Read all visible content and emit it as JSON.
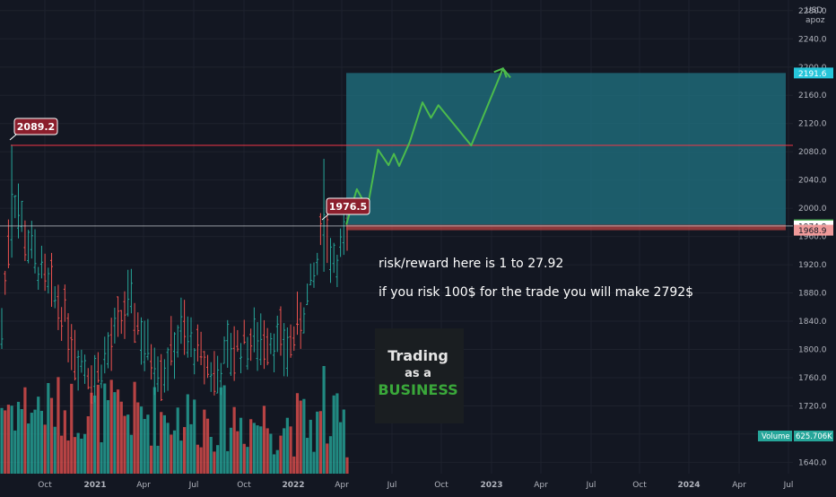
{
  "chart_data": {
    "type": "ohlc-bar",
    "x_axis": {
      "tick_labels": [
        "Oct",
        "2021",
        "Apr",
        "Jul",
        "Oct",
        "2022",
        "Apr",
        "Jul",
        "Oct",
        "2023",
        "Apr",
        "Jul",
        "Oct",
        "2024",
        "Apr",
        "Jul"
      ],
      "range": [
        "2020-07",
        "2024-07"
      ]
    },
    "y_axis": {
      "currency": "USD",
      "sub_label": "apoz",
      "ticks": [
        2280.0,
        2240.0,
        2200.0,
        2160.0,
        2120.0,
        2080.0,
        2040.0,
        2000.0,
        1960.0,
        1920.0,
        1880.0,
        1840.0,
        1800.0,
        1760.0,
        1720.0,
        1680.0,
        1640.0
      ],
      "tick_labels": [
        "2280.0",
        "2240.0",
        "2200.0",
        "2160.0",
        "2120.0",
        "2080.0",
        "2040.0",
        "2000.0",
        "1960.0",
        "1920.0",
        "1880.0",
        "1840.0",
        "1800.0",
        "1760.0",
        "1720.0",
        "1680.0",
        "1640.0"
      ],
      "range": [
        1624,
        2295
      ]
    },
    "price_badges": [
      {
        "value": "2191.6",
        "color": "#26c6da"
      },
      {
        "value": "1976.6",
        "color": "#4caf50"
      },
      {
        "value": "1974.9",
        "color": "#ffffff"
      },
      {
        "value": "1968.9",
        "color": "#ef9a9a"
      }
    ],
    "volume_badge": {
      "label": "Volume",
      "value": "625.706K",
      "color": "#26a69a"
    },
    "callouts": [
      {
        "text": "2089.2",
        "price": 2089.2
      },
      {
        "text": "1976.5",
        "price": 1976.5
      }
    ],
    "horizontal_lines": [
      {
        "price": 2089.2,
        "color": "#f23645"
      },
      {
        "price": 1974.9,
        "color": "#ffffff"
      }
    ],
    "trade_box": {
      "target": 2191.6,
      "entry": 1976.6,
      "stop": 1968.9,
      "ratio": 27.92
    },
    "projection_path": [
      [
        1976.6,
        0.0
      ],
      [
        2027.0,
        0.1
      ],
      [
        2000.0,
        0.2
      ],
      [
        2083.0,
        0.3
      ],
      [
        2061.0,
        0.4
      ],
      [
        2077.0,
        0.45
      ],
      [
        2060.0,
        0.5
      ],
      [
        2094.0,
        0.6
      ],
      [
        2150.0,
        0.72
      ],
      [
        2128.0,
        0.8
      ],
      [
        2146.0,
        0.87
      ],
      [
        2089.0,
        1.18
      ],
      [
        2198.0,
        1.48
      ],
      [
        2185.0,
        1.55
      ]
    ],
    "bars_seed": 7
  },
  "annotations": {
    "rr_text": "risk/reward here is 1 to 27.92",
    "risk_text": "if you risk 100$ for the trade you will make 2792$"
  },
  "logo": {
    "line1": "Trading",
    "line2": "as a",
    "line3": "BUSINESS"
  },
  "colors": {
    "background": "#131722",
    "up": "#26a69a",
    "down": "#ef5350",
    "axis_text": "#b2b5be",
    "target_fill": "#1f6f7f",
    "projection": "#4cbb4c"
  }
}
